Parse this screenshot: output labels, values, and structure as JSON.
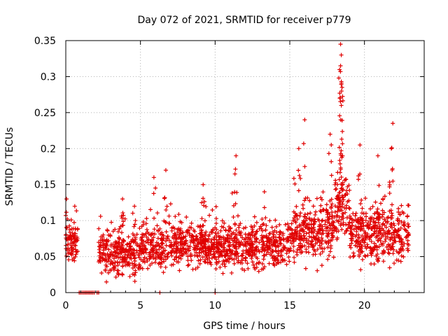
{
  "chart_data": {
    "type": "scatter",
    "title": "Day 072 of 2021, SRMTID for receiver p779",
    "xlabel": "GPS time / hours",
    "ylabel": "SRMTID / TECUs",
    "xlim": [
      0,
      24
    ],
    "ylim": [
      0,
      0.35
    ],
    "xticks": [
      0,
      5,
      10,
      15,
      20
    ],
    "yticks": [
      0,
      0.05,
      0.1,
      0.15,
      0.2,
      0.25,
      0.3,
      0.35
    ],
    "xtick_labels": [
      "0",
      "5",
      "10",
      "15",
      "20"
    ],
    "ytick_labels": [
      "0",
      "0.05",
      "0.1",
      "0.15",
      "0.2",
      "0.25",
      "0.3",
      "0.35"
    ],
    "grid": true,
    "marker": "+",
    "color": "#e00000",
    "series": [
      {
        "name": "SRMTID",
        "segments": [
          {
            "start": 0.0,
            "end": 0.8,
            "base": 0.07,
            "spread": 0.02,
            "spikes": [
              [
                0.05,
                0.13
              ],
              [
                0.6,
                0.12
              ]
            ]
          },
          {
            "start": 2.2,
            "end": 5.0,
            "base": 0.055,
            "spread": 0.025,
            "spikes": [
              [
                3.8,
                0.13
              ],
              [
                4.6,
                0.12
              ]
            ]
          },
          {
            "start": 5.0,
            "end": 10.0,
            "base": 0.065,
            "spread": 0.025,
            "spikes": [
              [
                5.9,
                0.16
              ],
              [
                6.7,
                0.17
              ],
              [
                9.2,
                0.15
              ]
            ]
          },
          {
            "start": 10.0,
            "end": 15.0,
            "base": 0.065,
            "spread": 0.025,
            "spikes": [
              [
                11.4,
                0.19
              ],
              [
                13.3,
                0.14
              ]
            ]
          },
          {
            "start": 15.0,
            "end": 18.0,
            "base": 0.085,
            "spread": 0.03,
            "spikes": [
              [
                15.6,
                0.2
              ],
              [
                16.0,
                0.24
              ],
              [
                17.7,
                0.22
              ]
            ]
          },
          {
            "start": 18.0,
            "end": 19.0,
            "base": 0.12,
            "spread": 0.04,
            "spikes": [
              [
                18.4,
                0.345
              ],
              [
                18.45,
                0.33
              ],
              [
                18.4,
                0.315
              ],
              [
                18.35,
                0.27
              ],
              [
                18.5,
                0.285
              ],
              [
                18.45,
                0.26
              ]
            ]
          },
          {
            "start": 19.0,
            "end": 23.0,
            "base": 0.08,
            "spread": 0.03,
            "spikes": [
              [
                19.7,
                0.205
              ],
              [
                20.9,
                0.19
              ],
              [
                21.9,
                0.235
              ],
              [
                21.8,
                0.2
              ]
            ]
          }
        ],
        "zeros": [
          0.9,
          1.0,
          1.1,
          1.2,
          1.3,
          1.4,
          1.5,
          1.6,
          1.7,
          1.8,
          1.9,
          2.1,
          2.2,
          6.3,
          10.0
        ]
      }
    ]
  }
}
